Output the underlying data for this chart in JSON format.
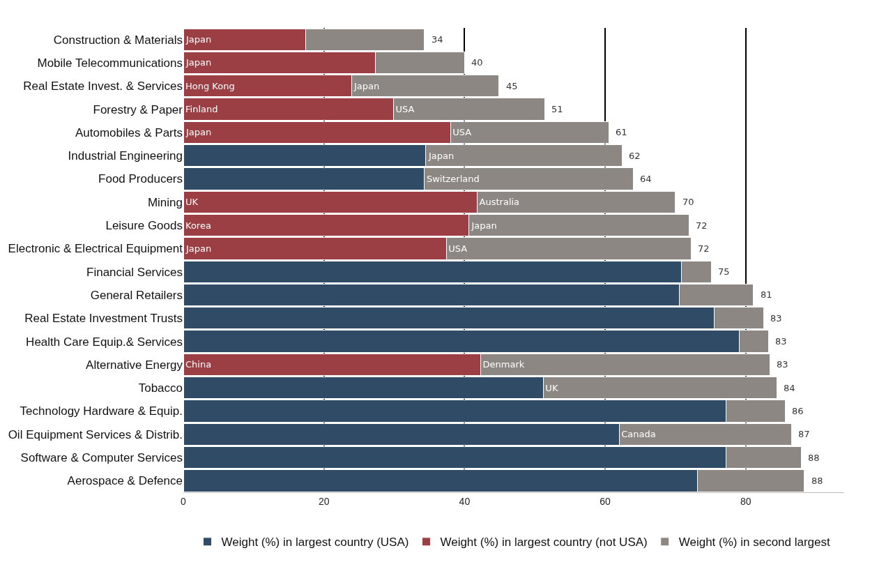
{
  "chart_data": {
    "type": "bar",
    "orientation": "horizontal",
    "stacked": true,
    "categories": [
      "Construction & Materials",
      "Mobile Telecommunications",
      "Real Estate Invest. & Services",
      "Forestry & Paper",
      "Automobiles & Parts",
      "Industrial Engineering",
      "Food Producers",
      "Mining",
      "Leisure Goods",
      "Electronic & Electrical Equipment",
      "Financial Services",
      "General Retailers",
      "Real Estate Investment Trusts",
      "Health Care Equip.& Services",
      "Alternative Energy",
      "Tobacco",
      "Technology Hardware & Equip.",
      "Oil Equipment Services & Distrib.",
      "Software & Computer Services",
      "Aerospace & Defence"
    ],
    "series": [
      {
        "name": "Weight (%) in largest country (USA)",
        "color": "#2f4b66",
        "values": [
          null,
          null,
          null,
          null,
          null,
          34.5,
          34.3,
          null,
          null,
          null,
          70.8,
          70.5,
          75.5,
          79.1,
          null,
          51.2,
          77.2,
          62,
          77.2,
          73.1
        ]
      },
      {
        "name": "Weight (%) in largest country (not USA)",
        "color": "#9b3f45",
        "values": [
          17.4,
          27.3,
          23.9,
          29.9,
          38,
          null,
          null,
          41.8,
          40.6,
          37.4,
          null,
          null,
          null,
          null,
          42.3,
          null,
          null,
          null,
          null,
          null
        ],
        "value_labels": [
          "Japan",
          "Japan",
          "Hong Kong",
          "Finland",
          "Japan",
          null,
          null,
          "UK",
          "Korea",
          "Japan",
          null,
          null,
          null,
          null,
          "China",
          null,
          null,
          null,
          null,
          null
        ]
      },
      {
        "name": "Weight (%) in second largest",
        "color": "#8c8782",
        "values": [
          16.9,
          12.7,
          21,
          21.5,
          22.5,
          27.9,
          29.7,
          28.2,
          31.3,
          34.8,
          4.3,
          10.6,
          7.0,
          4.1,
          41.1,
          33.2,
          8.4,
          24.5,
          10.7,
          15.2
        ],
        "value_labels": [
          null,
          null,
          "Japan",
          "USA",
          "USA",
          "Japan",
          "Switzerland",
          "Australia",
          "Japan",
          "USA",
          null,
          null,
          null,
          null,
          "Denmark",
          "UK",
          null,
          "Canada",
          null,
          null
        ]
      }
    ],
    "totals": [
      "34",
      "40",
      "45",
      "51",
      "61",
      "62",
      "64",
      "70",
      "72",
      "72",
      "75",
      "81",
      "83",
      "83",
      "83",
      "84",
      "86",
      "87",
      "88",
      "88"
    ],
    "xlim": [
      0,
      94
    ],
    "xticks": [
      0,
      20,
      40,
      60,
      80
    ],
    "grid": "x",
    "legend": "bottom"
  }
}
